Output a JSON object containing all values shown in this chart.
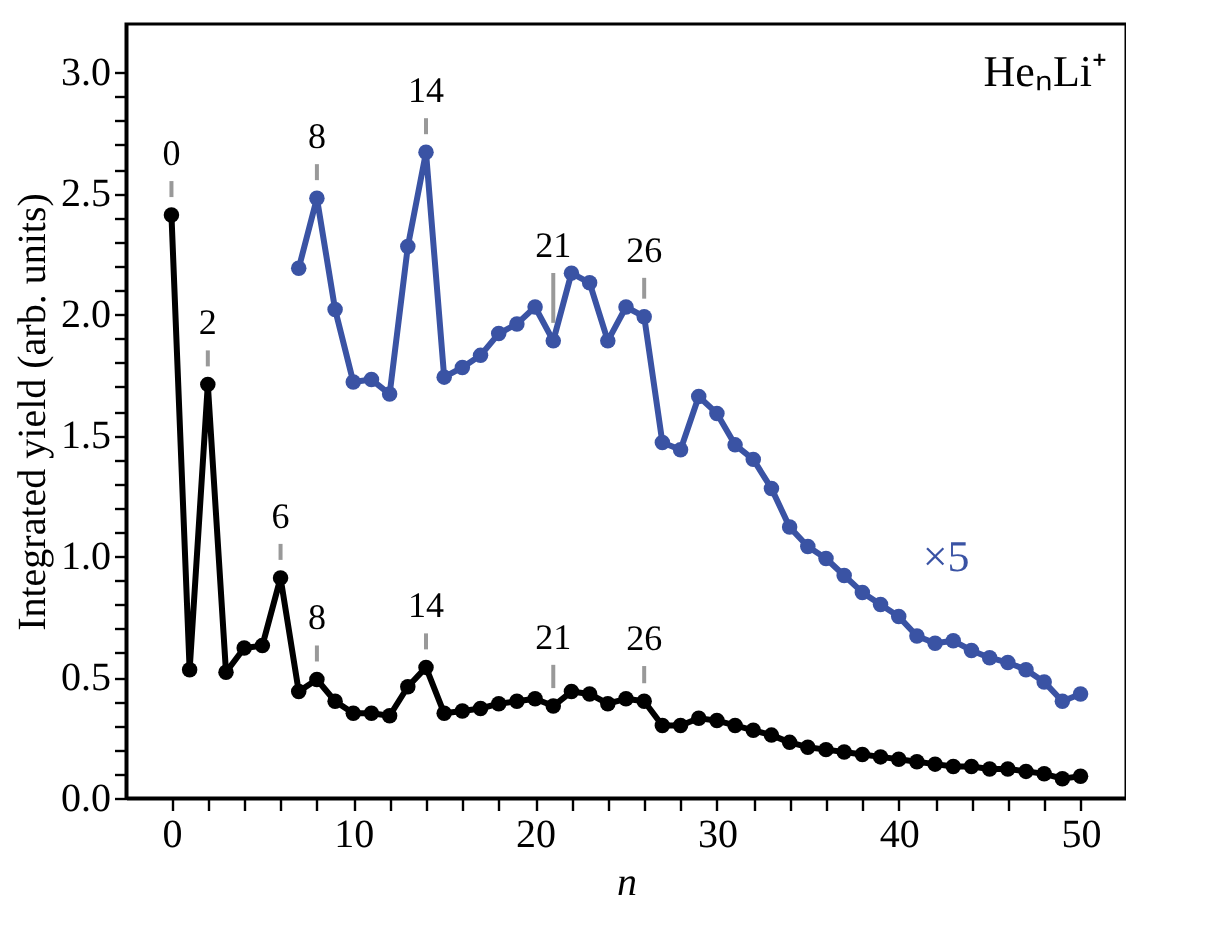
{
  "chart_data": {
    "type": "line",
    "xlabel": "n",
    "ylabel": "Integrated yield (arb. units)",
    "x": [
      0,
      1,
      2,
      3,
      4,
      5,
      6,
      7,
      8,
      9,
      10,
      11,
      12,
      13,
      14,
      15,
      16,
      17,
      18,
      19,
      20,
      21,
      22,
      23,
      24,
      25,
      26,
      27,
      28,
      29,
      30,
      31,
      32,
      33,
      34,
      35,
      36,
      37,
      38,
      39,
      40,
      41,
      42,
      43,
      44,
      45,
      46,
      47,
      48,
      49,
      50
    ],
    "series": [
      {
        "color": "#000000",
        "values": [
          2.41,
          0.53,
          1.71,
          0.52,
          0.62,
          0.63,
          0.91,
          0.44,
          0.49,
          0.4,
          0.35,
          0.35,
          0.34,
          0.46,
          0.54,
          0.35,
          0.36,
          0.37,
          0.39,
          0.4,
          0.41,
          0.38,
          0.44,
          0.43,
          0.39,
          0.41,
          0.4,
          0.3,
          0.3,
          0.33,
          0.32,
          0.3,
          0.28,
          0.26,
          0.23,
          0.21,
          0.2,
          0.19,
          0.18,
          0.17,
          0.16,
          0.15,
          0.14,
          0.13,
          0.13,
          0.12,
          0.12,
          0.11,
          0.1,
          0.08,
          0.09
        ]
      },
      {
        "name": "×5",
        "color": "#3a53a4",
        "x": [
          7,
          8,
          9,
          10,
          11,
          12,
          13,
          14,
          15,
          16,
          17,
          18,
          19,
          20,
          21,
          22,
          23,
          24,
          25,
          26,
          27,
          28,
          29,
          30,
          31,
          32,
          33,
          34,
          35,
          36,
          37,
          38,
          39,
          40,
          41,
          42,
          43,
          44,
          45,
          46,
          47,
          48,
          49,
          50
        ],
        "values": [
          2.19,
          2.48,
          2.02,
          1.72,
          1.73,
          1.67,
          2.28,
          2.67,
          1.74,
          1.78,
          1.83,
          1.92,
          1.96,
          2.03,
          1.89,
          2.17,
          2.13,
          1.89,
          2.03,
          1.99,
          1.47,
          1.44,
          1.66,
          1.59,
          1.46,
          1.4,
          1.28,
          1.12,
          1.04,
          0.99,
          0.92,
          0.85,
          0.8,
          0.75,
          0.67,
          0.64,
          0.65,
          0.61,
          0.58,
          0.56,
          0.53,
          0.48,
          0.4,
          0.43
        ]
      }
    ],
    "annotations": [
      "HeₙLi⁺",
      {
        "text": "0",
        "x": 0,
        "y": 2.41
      },
      {
        "text": "2",
        "x": 2,
        "y": 1.71
      },
      {
        "text": "6",
        "x": 6,
        "y": 0.91
      },
      {
        "text": "8",
        "x": 8,
        "y": 0.49
      },
      {
        "text": "14",
        "x": 14,
        "y": 0.54
      },
      {
        "text": "21",
        "x": 21,
        "y": 0.38
      },
      {
        "text": "26",
        "x": 26,
        "y": 0.4
      },
      {
        "text": "8",
        "x": 8,
        "y": 2.48
      },
      {
        "text": "14",
        "x": 14,
        "y": 2.67
      },
      {
        "text": "21",
        "x": 21,
        "y": 1.89
      },
      {
        "text": "26",
        "x": 26,
        "y": 1.99
      }
    ],
    "xlim": [
      -2.5,
      52.5
    ],
    "xticks": [
      0,
      {
        "value": 2,
        "label": null
      },
      {
        "value": 4,
        "label": null
      },
      {
        "value": 6,
        "label": null
      },
      {
        "value": 8,
        "label": null
      },
      10,
      {
        "value": 12,
        "label": null
      },
      {
        "value": 14,
        "label": null
      },
      {
        "value": 16,
        "label": null
      },
      {
        "value": 18,
        "label": null
      },
      20,
      {
        "value": 22,
        "label": null
      },
      {
        "value": 24,
        "label": null
      },
      {
        "value": 26,
        "label": null
      },
      {
        "value": 28,
        "label": null
      },
      30,
      {
        "value": 32,
        "label": null
      },
      {
        "value": 34,
        "label": null
      },
      {
        "value": 36,
        "label": null
      },
      {
        "value": 38,
        "label": null
      },
      40,
      {
        "value": 42,
        "label": null
      },
      {
        "value": 44,
        "label": null
      },
      {
        "value": 46,
        "label": null
      },
      {
        "value": 48,
        "label": null
      },
      50
    ],
    "ylim": [
      0,
      3.2
    ],
    "yticks": [
      {
        "value": 0,
        "label": "0.0"
      },
      {
        "value": 0.1,
        "label": null
      },
      {
        "value": 0.2,
        "label": null
      },
      {
        "value": 0.3,
        "label": null
      },
      {
        "value": 0.4,
        "label": null
      },
      0.5,
      {
        "value": 0.6,
        "label": null
      },
      {
        "value": 0.7,
        "label": null
      },
      {
        "value": 0.8,
        "label": null
      },
      {
        "value": 0.9,
        "label": null
      },
      {
        "value": 1,
        "label": "1.0"
      },
      {
        "value": 1.1,
        "label": null
      },
      {
        "value": 1.2,
        "label": null
      },
      {
        "value": 1.3,
        "label": null
      },
      {
        "value": 1.4,
        "label": null
      },
      1.5,
      {
        "value": 1.6,
        "label": null
      },
      {
        "value": 1.7,
        "label": null
      },
      {
        "value": 1.8,
        "label": null
      },
      {
        "value": 1.9,
        "label": null
      },
      {
        "value": 2,
        "label": "2.0"
      },
      {
        "value": 2.1,
        "label": null
      },
      {
        "value": 2.2,
        "label": null
      },
      {
        "value": 2.3,
        "label": null
      },
      {
        "value": 2.4,
        "label": null
      },
      2.5,
      {
        "value": 2.6,
        "label": null
      },
      {
        "value": 2.7,
        "label": null
      },
      {
        "value": 2.8,
        "label": null
      },
      {
        "value": 2.9,
        "label": null
      },
      {
        "value": 3,
        "label": "3.0"
      }
    ],
    "grid": false,
    "marker": "circle",
    "line_style": "solid"
  }
}
